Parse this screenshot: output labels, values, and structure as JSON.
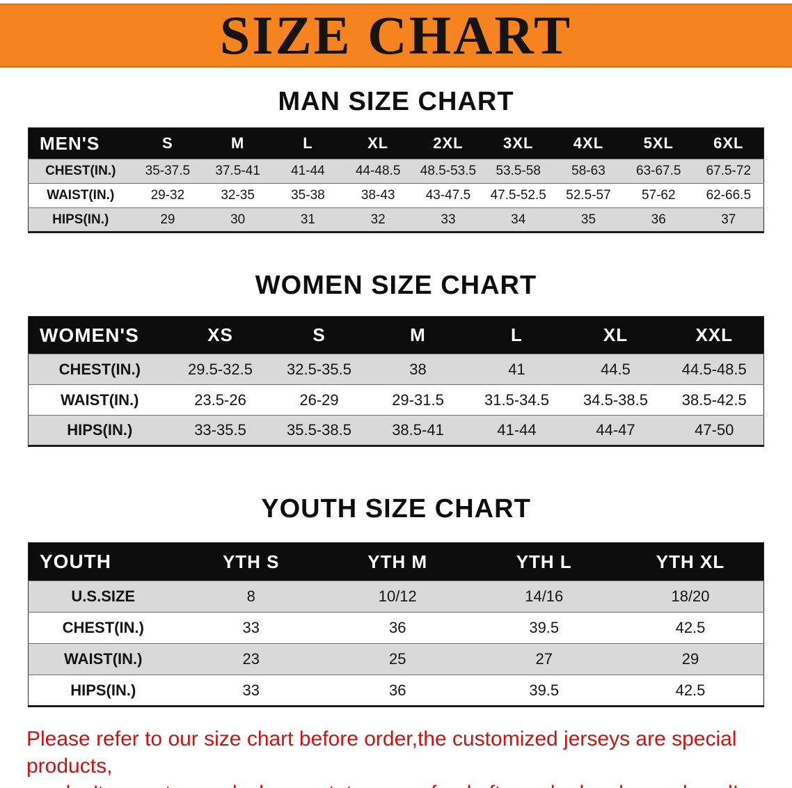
{
  "banner": {
    "title": "SIZE CHART",
    "bg_color": "#f5831f",
    "text_color": "#171310"
  },
  "tables": {
    "men": {
      "title": "MAN SIZE CHART",
      "header": [
        "MEN'S",
        "S",
        "M",
        "L",
        "XL",
        "2XL",
        "3XL",
        "4XL",
        "5XL",
        "6XL"
      ],
      "rows": [
        [
          "CHEST(IN.)",
          "35-37.5",
          "37.5-41",
          "41-44",
          "44-48.5",
          "48.5-53.5",
          "53.5-58",
          "58-63",
          "63-67.5",
          "67.5-72"
        ],
        [
          "WAIST(IN.)",
          "29-32",
          "32-35",
          "35-38",
          "38-43",
          "43-47.5",
          "47.5-52.5",
          "52.5-57",
          "57-62",
          "62-66.5"
        ],
        [
          "HIPS(IN.)",
          "29",
          "30",
          "31",
          "32",
          "33",
          "34",
          "35",
          "36",
          "37"
        ]
      ]
    },
    "women": {
      "title": "WOMEN SIZE CHART",
      "header": [
        "WOMEN'S",
        "XS",
        "S",
        "M",
        "L",
        "XL",
        "XXL"
      ],
      "rows": [
        [
          "CHEST(IN.)",
          "29.5-32.5",
          "32.5-35.5",
          "38",
          "41",
          "44.5",
          "44.5-48.5"
        ],
        [
          "WAIST(IN.)",
          "23.5-26",
          "26-29",
          "29-31.5",
          "31.5-34.5",
          "34.5-38.5",
          "38.5-42.5"
        ],
        [
          "HIPS(IN.)",
          "33-35.5",
          "35.5-38.5",
          "38.5-41",
          "41-44",
          "44-47",
          "47-50"
        ]
      ]
    },
    "youth": {
      "title": "YOUTH SIZE CHART",
      "header": [
        "YOUTH",
        "YTH S",
        "YTH M",
        "YTH L",
        "YTH XL"
      ],
      "rows": [
        [
          "U.S.SIZE",
          "8",
          "10/12",
          "14/16",
          "18/20"
        ],
        [
          "CHEST(IN.)",
          "33",
          "36",
          "39.5",
          "42.5"
        ],
        [
          "WAIST(IN.)",
          "23",
          "25",
          "27",
          "29"
        ],
        [
          "HIPS(IN.)",
          "33",
          "36",
          "39.5",
          "42.5"
        ]
      ]
    }
  },
  "footer": {
    "line1": "Please refer to our size chart before order,the customized jerseys are special products,",
    "line2": "we don't accept cancel, change, teturn or refund after order has been placed!",
    "text_color": "#c91414"
  }
}
